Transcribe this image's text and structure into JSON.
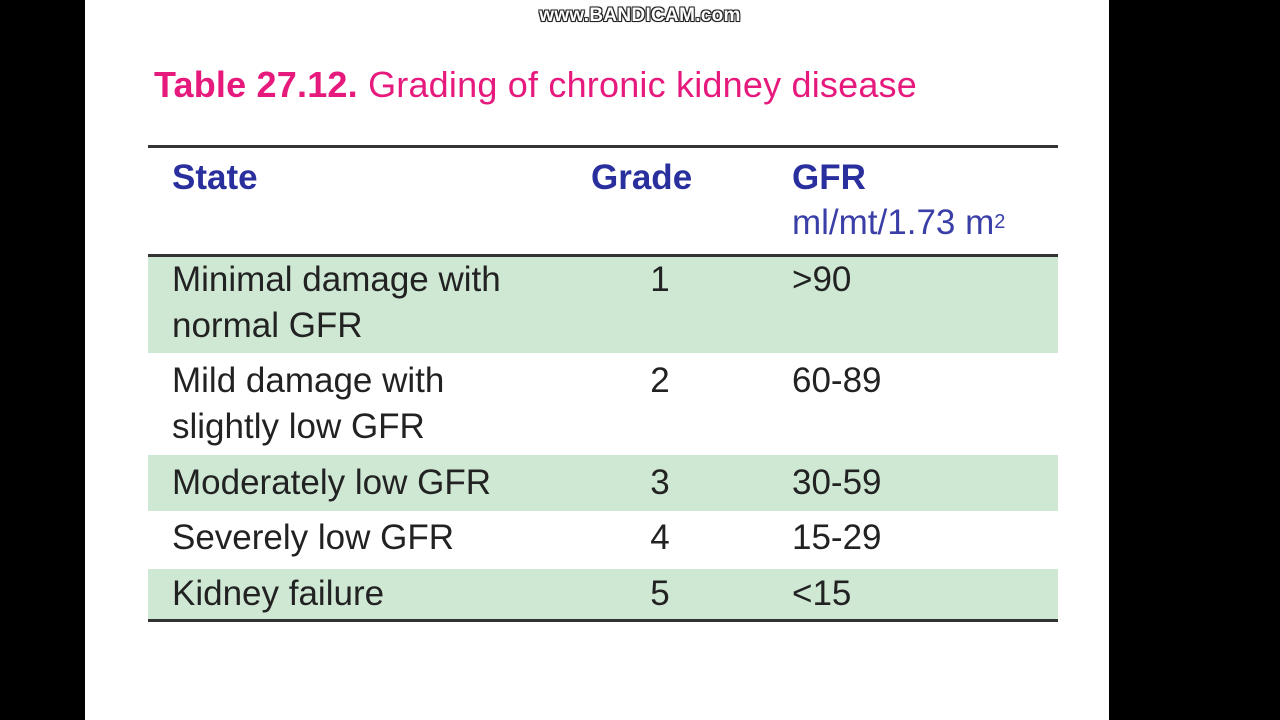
{
  "watermark": "www.BANDICAM.com",
  "title": {
    "number": "Table 27.12.",
    "text": "Grading of chronic kidney disease"
  },
  "table": {
    "headers": {
      "state": "State",
      "grade": "Grade",
      "gfr": "GFR",
      "gfr_unit": "ml/mt/1.73 m",
      "gfr_unit_sup": "2"
    },
    "rows": [
      {
        "state_line1": "Minimal damage with",
        "state_line2": "normal GFR",
        "grade": "1",
        "gfr": ">90"
      },
      {
        "state_line1": "Mild damage with",
        "state_line2": "slightly low GFR",
        "grade": "2",
        "gfr": "60-89"
      },
      {
        "state_line1": "Moderately low GFR",
        "state_line2": "",
        "grade": "3",
        "gfr": "30-59"
      },
      {
        "state_line1": "Severely low GFR",
        "state_line2": "",
        "grade": "4",
        "gfr": "15-29"
      },
      {
        "state_line1": "Kidney failure",
        "state_line2": "",
        "grade": "5",
        "gfr": "<15"
      }
    ]
  },
  "colors": {
    "title": "#e6197d",
    "header_text": "#2a2f9e",
    "stripe": "#cfe8d4",
    "background": "#000000"
  }
}
